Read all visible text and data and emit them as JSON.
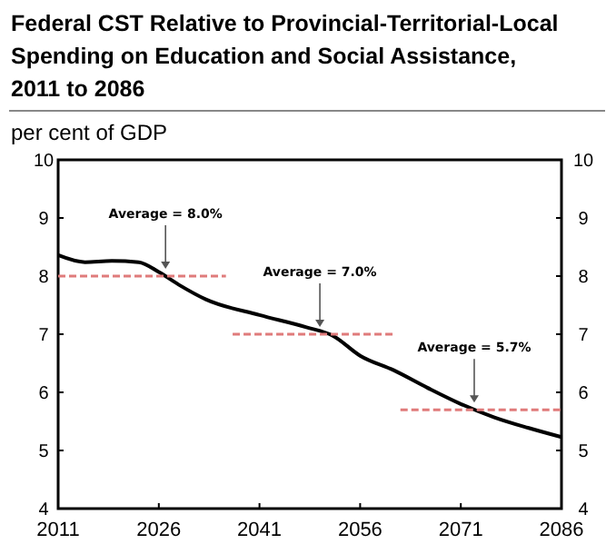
{
  "chart_data": {
    "type": "line",
    "title": "Federal CST Relative to Provincial-Territorial-Local Spending on Education and Social Assistance, 2011 to 2086",
    "ylabel": "per cent of GDP",
    "xlim": [
      2011,
      2086
    ],
    "xticks": [
      2011,
      2026,
      2041,
      2056,
      2071,
      2086
    ],
    "ylim": [
      4,
      10
    ],
    "yticks": [
      4,
      5,
      6,
      7,
      8,
      9,
      10
    ],
    "y2lim": [
      4,
      10
    ],
    "y2ticks": [
      4,
      5,
      6,
      7,
      8,
      9,
      10
    ],
    "grid": false,
    "series": [
      {
        "color": "#000000",
        "x": [
          2011,
          2015,
          2019,
          2023,
          2026,
          2029,
          2033,
          2041,
          2048,
          2052,
          2056,
          2061,
          2066,
          2071,
          2076,
          2081,
          2086
        ],
        "values": [
          8.36,
          8.24,
          8.26,
          8.24,
          8.07,
          7.85,
          7.6,
          7.33,
          7.12,
          6.97,
          6.63,
          6.38,
          6.08,
          5.8,
          5.57,
          5.39,
          5.23
        ]
      },
      {
        "type": "line",
        "line_style": "dashed",
        "color": "#e07b7b",
        "x": [
          2011,
          2036
        ],
        "values": [
          8.0,
          8.0
        ]
      },
      {
        "type": "line",
        "line_style": "dashed",
        "color": "#e07b7b",
        "x": [
          2037,
          2061
        ],
        "values": [
          7.0,
          7.0
        ]
      },
      {
        "type": "line",
        "line_style": "dashed",
        "color": "#e07b7b",
        "x": [
          2062,
          2086
        ],
        "values": [
          5.7,
          5.7
        ]
      }
    ],
    "annotations": [
      {
        "text": "Average = 8.0%",
        "x": 2027,
        "y": 8.0
      },
      {
        "text": "Average = 7.0%",
        "x": 2050,
        "y": 7.0
      },
      {
        "text": "Average = 5.7%",
        "x": 2073,
        "y": 5.7
      }
    ]
  }
}
